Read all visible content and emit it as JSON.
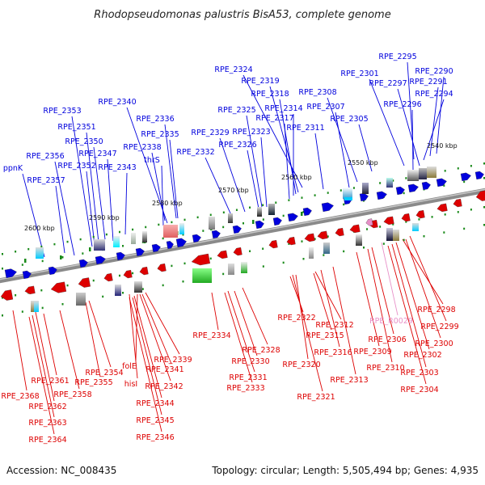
{
  "title": "Rhodopseudomonas palustris BisA53, complete genome",
  "footer": {
    "accession": "Accession: NC_008435",
    "summary": "Topology: circular; Length: 5,505,494 bp; Genes: 4,935"
  },
  "colors": {
    "forward": "#0000dd",
    "reverse": "#dd0000",
    "rna": "#e890c8",
    "backbone": "#888888",
    "tick": "#1a8a1a"
  },
  "kbp_marks": [
    "2540 kbp",
    "2550 kbp",
    "2560 kbp",
    "2570 kbp",
    "2580 kbp",
    "2590 kbp",
    "2600 kbp"
  ],
  "forward_labels": [
    "RPE_2295",
    "RPE_2290",
    "RPE_2301",
    "RPE_2297",
    "RPE_2291",
    "RPE_2294",
    "RPE_2296",
    "RPE_2308",
    "RPE_2307",
    "RPE_2305",
    "RPE_2311",
    "RPE_2324",
    "RPE_2319",
    "RPE_2318",
    "RPE_2314",
    "RPE_2317",
    "RPE_2325",
    "RPE_2323",
    "RPE_2329",
    "RPE_2326",
    "RPE_2332",
    "RPE_2340",
    "RPE_2336",
    "RPE_2335",
    "RPE_2338",
    "thrS",
    "RPE_2353",
    "RPE_2351",
    "RPE_2350",
    "RPE_2347",
    "RPE_2356",
    "RPE_2352",
    "RPE_2343",
    "ppnK",
    "RPE_2357"
  ],
  "reverse_labels": [
    "RPE_2322",
    "RPE_R0029",
    "RPE_2312",
    "RPE_2315",
    "RPE_2306",
    "RPE_2316",
    "RPE_2309",
    "RPE_2310",
    "RPE_2313",
    "RPE_2320",
    "RPE_2321",
    "RPE_2298",
    "RPE_2299",
    "RPE_2300",
    "RPE_2302",
    "RPE_2303",
    "RPE_2304",
    "RPE_2334",
    "RPE_2328",
    "RPE_2330",
    "RPE_2331",
    "RPE_2333",
    "RPE_2339",
    "folE",
    "RPE_2341",
    "hisI",
    "RPE_2342",
    "RPE_2344",
    "RPE_2345",
    "RPE_2346",
    "RPE_2354",
    "RPE_2355",
    "RPE_2361",
    "RPE_2358",
    "RPE_2368",
    "RPE_2362",
    "RPE_2363",
    "RPE_2364"
  ]
}
